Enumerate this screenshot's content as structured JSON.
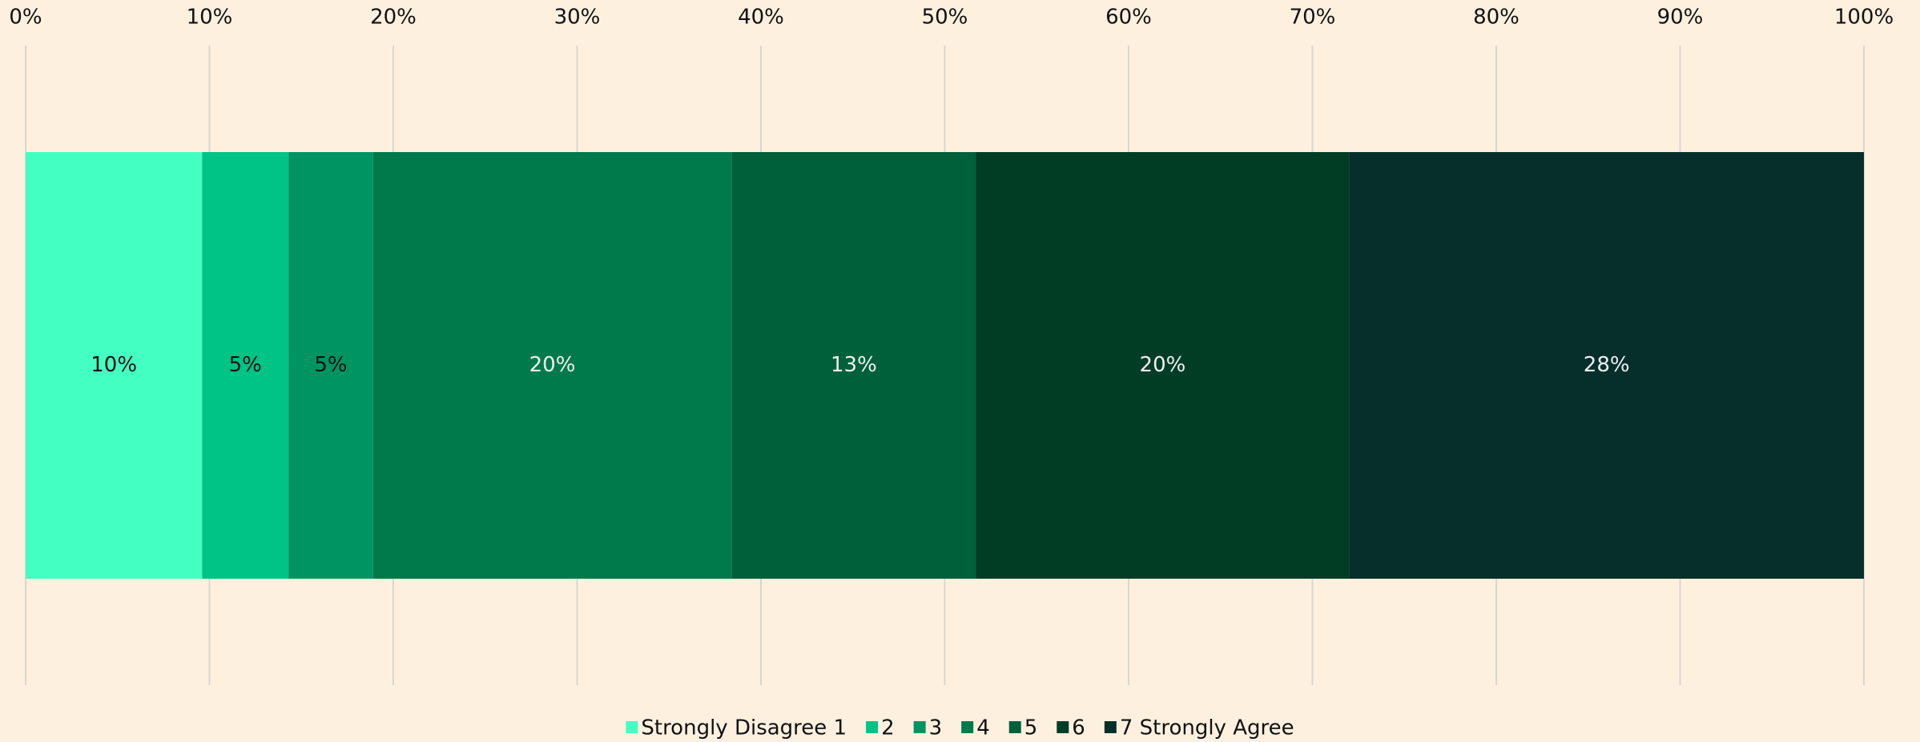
{
  "chart_data": {
    "type": "stacked_barh",
    "categories": [
      null
    ],
    "series": [
      {
        "name": "Strongly Disagree 1",
        "color": "#44ffc2",
        "label_color": "#111111",
        "values": [
          9.6
        ],
        "value_labels": [
          "10%"
        ]
      },
      {
        "name": "2",
        "color": "#00c386",
        "label_color": "#111111",
        "values": [
          4.7
        ],
        "value_labels": [
          "5%"
        ]
      },
      {
        "name": "3",
        "color": "#009463",
        "label_color": "#111111",
        "values": [
          4.6
        ],
        "value_labels": [
          "5%"
        ]
      },
      {
        "name": "4",
        "color": "#007a4a",
        "label_color": "#f0f0f0",
        "values": [
          19.5
        ],
        "value_labels": [
          "20%"
        ]
      },
      {
        "name": "5",
        "color": "#006039",
        "label_color": "#f0f0f0",
        "values": [
          13.3
        ],
        "value_labels": [
          "13%"
        ]
      },
      {
        "name": "6",
        "color": "#003d25",
        "label_color": "#f0f0f0",
        "values": [
          20.3
        ],
        "value_labels": [
          "20%"
        ]
      },
      {
        "name": "7 Strongly Agree",
        "color": "#062f2c",
        "label_color": "#f0f0f0",
        "values": [
          28.0
        ],
        "value_labels": [
          "28%"
        ]
      }
    ],
    "xlim": [
      0,
      100
    ],
    "xticks": [
      {
        "value": 0,
        "label": "0%"
      },
      {
        "value": 10,
        "label": "10%"
      },
      {
        "value": 20,
        "label": "20%"
      },
      {
        "value": 30,
        "label": "30%"
      },
      {
        "value": 40,
        "label": "40%"
      },
      {
        "value": 50,
        "label": "50%"
      },
      {
        "value": 60,
        "label": "60%"
      },
      {
        "value": 70,
        "label": "70%"
      },
      {
        "value": 80,
        "label": "80%"
      },
      {
        "value": 90,
        "label": "90%"
      },
      {
        "value": 100,
        "label": "100%"
      }
    ],
    "grid": true,
    "legend": "bottom"
  }
}
